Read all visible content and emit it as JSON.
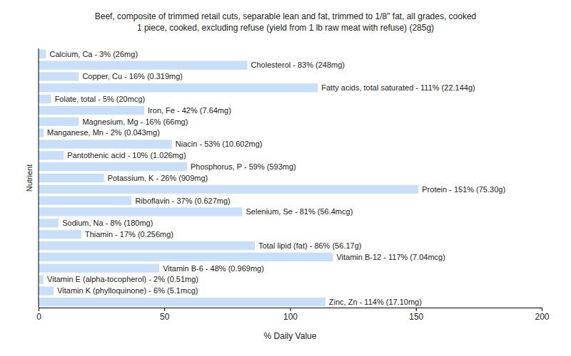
{
  "chart_data": {
    "type": "bar",
    "orientation": "horizontal",
    "title": [
      "Beef, composite of trimmed retail cuts, separable lean and fat, trimmed to 1/8\" fat, all grades, cooked",
      "1 piece, cooked, excluding refuse (yield from 1 lb raw meat with refuse) (285g)"
    ],
    "x_label": "% Daily Value",
    "y_label": "Nutrient",
    "values": [
      3,
      83,
      16,
      111,
      5,
      42,
      16,
      2,
      53,
      10,
      59,
      26,
      151,
      37,
      81,
      8,
      17,
      86,
      117,
      48,
      2,
      6,
      114
    ],
    "value_labels": [
      "Calcium, Ca - 3% (26mg)",
      "Cholesterol - 83% (248mg)",
      "Copper, Cu - 16% (0.319mg)",
      "Fatty acids, total saturated - 111% (22.144g)",
      "Folate, total - 5% (20mcg)",
      "Iron, Fe - 42% (7.64mg)",
      "Magnesium, Mg - 16% (66mg)",
      "Manganese, Mn - 2% (0.043mg)",
      "Niacin - 53% (10.602mg)",
      "Pantothenic acid - 10% (1.026mg)",
      "Phosphorus, P - 59% (593mg)",
      "Potassium, K - 26% (909mg)",
      "Protein - 151% (75.30g)",
      "Riboflavin - 37% (0.627mg)",
      "Selenium, Se - 81% (56.4mcg)",
      "Sodium, Na - 8% (180mg)",
      "Thiamin - 17% (0.256mg)",
      "Total lipid (fat) - 86% (56.17g)",
      "Vitamin B-12 - 117% (7.04mcg)",
      "Vitamin B-6 - 48% (0.969mg)",
      "Vitamin E (alpha-tocopherol) - 2% (0.51mg)",
      "Vitamin K (phylloquinone) - 6% (5.1mcg)",
      "Zinc, Zn - 114% (17.10mg)"
    ],
    "data_labels": true,
    "tick_labels": "x",
    "color": "#c9dff8",
    "xlim": [
      0,
      200
    ],
    "xticks": [
      0,
      50,
      100,
      150,
      200
    ],
    "grid": false
  }
}
